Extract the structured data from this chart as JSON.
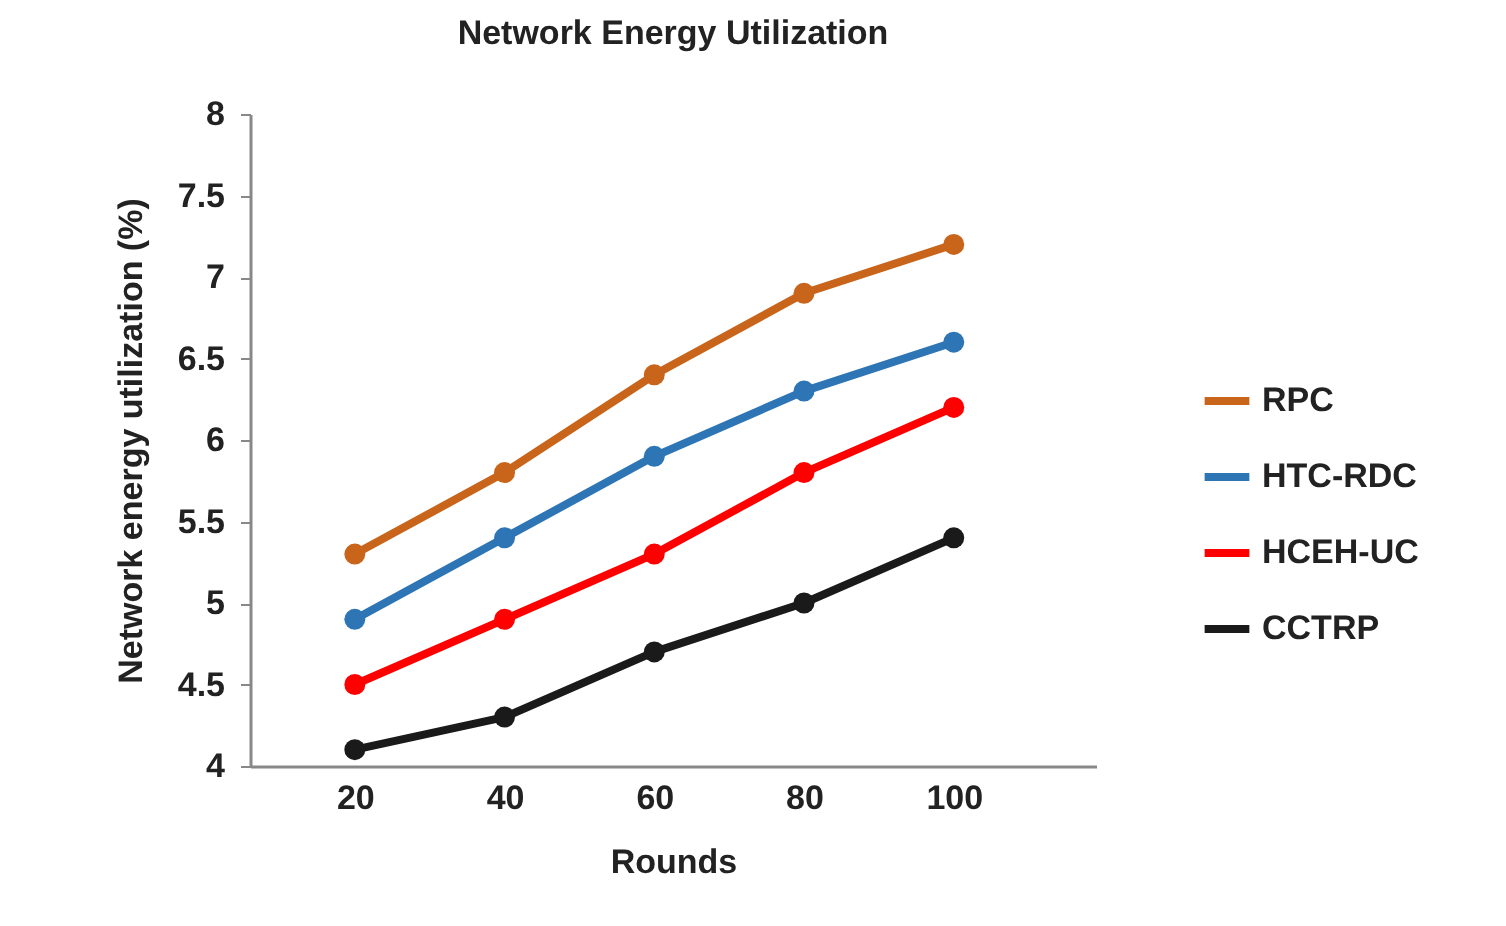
{
  "chart_data": {
    "type": "line",
    "title": "Network Energy Utilization",
    "xlabel": "Rounds",
    "ylabel": "Network energy utilization (%)",
    "x": [
      20,
      40,
      60,
      80,
      100
    ],
    "xlim": [
      6,
      119
    ],
    "xticks": [
      20,
      40,
      60,
      80,
      100
    ],
    "ylim": [
      4,
      8
    ],
    "yticks": [
      4,
      4.5,
      5,
      5.5,
      6,
      6.5,
      7,
      7.5,
      8
    ],
    "grid": false,
    "legend": "right",
    "marker": "circle",
    "line_style": "solid",
    "series": [
      {
        "name": "RPC",
        "color": "#c8651b",
        "values": [
          5.3,
          5.8,
          6.4,
          6.9,
          7.2
        ]
      },
      {
        "name": "HTC-RDC",
        "color": "#2e75b6",
        "values": [
          4.9,
          5.4,
          5.9,
          6.3,
          6.6
        ]
      },
      {
        "name": "HCEH-UC",
        "color": "#ff0000",
        "values": [
          4.5,
          4.9,
          5.3,
          5.8,
          6.2
        ]
      },
      {
        "name": "CCTRP",
        "color": "#1a1a1a",
        "values": [
          4.1,
          4.3,
          4.7,
          5.0,
          5.4
        ]
      }
    ]
  }
}
